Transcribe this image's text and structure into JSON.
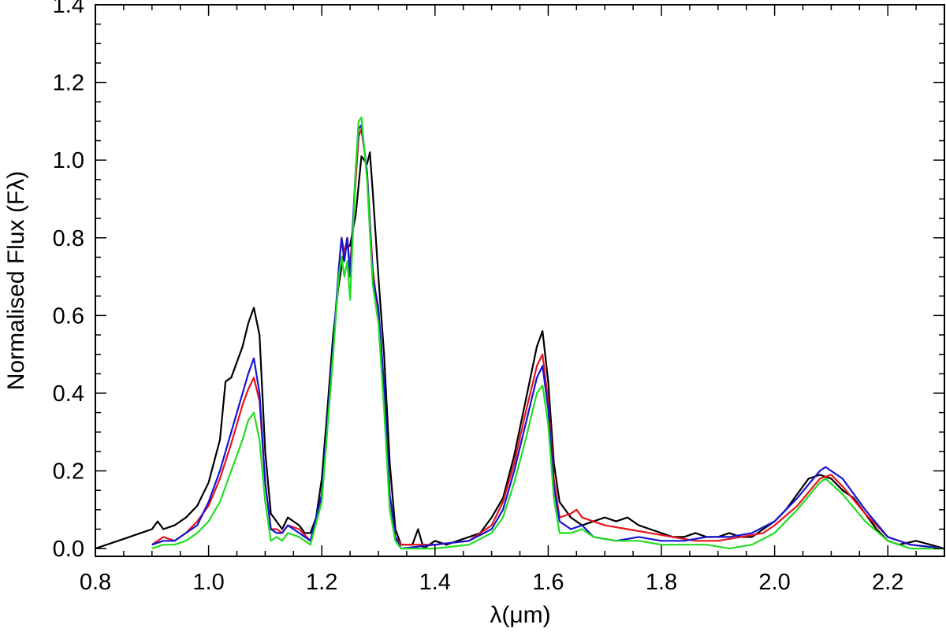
{
  "chart_data": {
    "type": "line",
    "title": "",
    "xlabel": "λ(μm)",
    "ylabel": "Normalised Flux (Fλ)",
    "xlim": [
      0.8,
      2.3
    ],
    "ylim": [
      -0.02,
      1.4
    ],
    "grid": false,
    "x_ticks": [
      "0.8",
      "1.0",
      "1.2",
      "1.4",
      "1.6",
      "1.8",
      "2.0",
      "2.2"
    ],
    "y_ticks": [
      "0.0",
      "0.2",
      "0.4",
      "0.6",
      "0.8",
      "1.0",
      "1.2",
      "1.4"
    ],
    "series": [
      {
        "color": "#000000",
        "points": [
          [
            0.8,
            0.0
          ],
          [
            0.82,
            0.01
          ],
          [
            0.84,
            0.02
          ],
          [
            0.86,
            0.03
          ],
          [
            0.88,
            0.04
          ],
          [
            0.9,
            0.05
          ],
          [
            0.91,
            0.07
          ],
          [
            0.92,
            0.05
          ],
          [
            0.94,
            0.06
          ],
          [
            0.96,
            0.08
          ],
          [
            0.98,
            0.11
          ],
          [
            1.0,
            0.17
          ],
          [
            1.02,
            0.28
          ],
          [
            1.03,
            0.43
          ],
          [
            1.04,
            0.44
          ],
          [
            1.05,
            0.48
          ],
          [
            1.06,
            0.52
          ],
          [
            1.07,
            0.58
          ],
          [
            1.08,
            0.62
          ],
          [
            1.09,
            0.55
          ],
          [
            1.1,
            0.25
          ],
          [
            1.11,
            0.09
          ],
          [
            1.12,
            0.07
          ],
          [
            1.13,
            0.05
          ],
          [
            1.14,
            0.08
          ],
          [
            1.15,
            0.07
          ],
          [
            1.16,
            0.06
          ],
          [
            1.17,
            0.04
          ],
          [
            1.18,
            0.04
          ],
          [
            1.19,
            0.08
          ],
          [
            1.2,
            0.18
          ],
          [
            1.21,
            0.36
          ],
          [
            1.22,
            0.55
          ],
          [
            1.23,
            0.68
          ],
          [
            1.24,
            0.77
          ],
          [
            1.25,
            0.78
          ],
          [
            1.26,
            0.86
          ],
          [
            1.27,
            1.01
          ],
          [
            1.28,
            0.99
          ],
          [
            1.285,
            1.02
          ],
          [
            1.29,
            0.92
          ],
          [
            1.3,
            0.7
          ],
          [
            1.31,
            0.5
          ],
          [
            1.32,
            0.22
          ],
          [
            1.33,
            0.05
          ],
          [
            1.34,
            0.01
          ],
          [
            1.36,
            0.01
          ],
          [
            1.37,
            0.05
          ],
          [
            1.38,
            0.0
          ],
          [
            1.4,
            0.02
          ],
          [
            1.42,
            0.01
          ],
          [
            1.44,
            0.02
          ],
          [
            1.46,
            0.03
          ],
          [
            1.48,
            0.04
          ],
          [
            1.5,
            0.08
          ],
          [
            1.52,
            0.13
          ],
          [
            1.54,
            0.24
          ],
          [
            1.56,
            0.38
          ],
          [
            1.58,
            0.52
          ],
          [
            1.59,
            0.56
          ],
          [
            1.6,
            0.43
          ],
          [
            1.61,
            0.22
          ],
          [
            1.62,
            0.12
          ],
          [
            1.64,
            0.08
          ],
          [
            1.66,
            0.06
          ],
          [
            1.68,
            0.07
          ],
          [
            1.7,
            0.08
          ],
          [
            1.72,
            0.07
          ],
          [
            1.74,
            0.08
          ],
          [
            1.76,
            0.06
          ],
          [
            1.78,
            0.05
          ],
          [
            1.8,
            0.04
          ],
          [
            1.82,
            0.03
          ],
          [
            1.84,
            0.03
          ],
          [
            1.86,
            0.04
          ],
          [
            1.88,
            0.03
          ],
          [
            1.9,
            0.03
          ],
          [
            1.92,
            0.04
          ],
          [
            1.94,
            0.03
          ],
          [
            1.96,
            0.03
          ],
          [
            1.98,
            0.05
          ],
          [
            2.0,
            0.07
          ],
          [
            2.02,
            0.1
          ],
          [
            2.04,
            0.14
          ],
          [
            2.06,
            0.18
          ],
          [
            2.08,
            0.19
          ],
          [
            2.1,
            0.18
          ],
          [
            2.12,
            0.15
          ],
          [
            2.14,
            0.13
          ],
          [
            2.16,
            0.09
          ],
          [
            2.18,
            0.05
          ],
          [
            2.2,
            0.02
          ],
          [
            2.22,
            0.01
          ],
          [
            2.25,
            0.02
          ],
          [
            2.3,
            0.0
          ]
        ]
      },
      {
        "color": "#e8141c",
        "points": [
          [
            0.9,
            0.01
          ],
          [
            0.92,
            0.03
          ],
          [
            0.94,
            0.02
          ],
          [
            0.96,
            0.04
          ],
          [
            0.98,
            0.07
          ],
          [
            1.0,
            0.11
          ],
          [
            1.02,
            0.18
          ],
          [
            1.04,
            0.27
          ],
          [
            1.06,
            0.37
          ],
          [
            1.07,
            0.41
          ],
          [
            1.08,
            0.44
          ],
          [
            1.09,
            0.38
          ],
          [
            1.1,
            0.17
          ],
          [
            1.11,
            0.05
          ],
          [
            1.12,
            0.05
          ],
          [
            1.13,
            0.04
          ],
          [
            1.14,
            0.06
          ],
          [
            1.16,
            0.05
          ],
          [
            1.18,
            0.02
          ],
          [
            1.2,
            0.13
          ],
          [
            1.22,
            0.5
          ],
          [
            1.23,
            0.72
          ],
          [
            1.235,
            0.8
          ],
          [
            1.24,
            0.76
          ],
          [
            1.245,
            0.8
          ],
          [
            1.25,
            0.72
          ],
          [
            1.26,
            0.95
          ],
          [
            1.265,
            1.06
          ],
          [
            1.27,
            1.08
          ],
          [
            1.28,
            0.97
          ],
          [
            1.29,
            0.72
          ],
          [
            1.3,
            0.6
          ],
          [
            1.31,
            0.4
          ],
          [
            1.32,
            0.14
          ],
          [
            1.33,
            0.03
          ],
          [
            1.34,
            0.01
          ],
          [
            1.4,
            0.01
          ],
          [
            1.46,
            0.02
          ],
          [
            1.5,
            0.06
          ],
          [
            1.52,
            0.12
          ],
          [
            1.54,
            0.22
          ],
          [
            1.56,
            0.35
          ],
          [
            1.58,
            0.47
          ],
          [
            1.59,
            0.5
          ],
          [
            1.6,
            0.38
          ],
          [
            1.61,
            0.18
          ],
          [
            1.62,
            0.08
          ],
          [
            1.64,
            0.09
          ],
          [
            1.65,
            0.1
          ],
          [
            1.66,
            0.08
          ],
          [
            1.7,
            0.06
          ],
          [
            1.74,
            0.05
          ],
          [
            1.78,
            0.04
          ],
          [
            1.82,
            0.03
          ],
          [
            1.86,
            0.02
          ],
          [
            1.9,
            0.02
          ],
          [
            1.94,
            0.03
          ],
          [
            1.98,
            0.04
          ],
          [
            2.0,
            0.06
          ],
          [
            2.04,
            0.11
          ],
          [
            2.08,
            0.18
          ],
          [
            2.1,
            0.19
          ],
          [
            2.12,
            0.16
          ],
          [
            2.16,
            0.09
          ],
          [
            2.2,
            0.03
          ],
          [
            2.24,
            0.01
          ],
          [
            2.3,
            0.0
          ]
        ]
      },
      {
        "color": "#1414d4",
        "points": [
          [
            0.9,
            0.01
          ],
          [
            0.92,
            0.02
          ],
          [
            0.94,
            0.02
          ],
          [
            0.96,
            0.04
          ],
          [
            0.98,
            0.06
          ],
          [
            1.0,
            0.12
          ],
          [
            1.02,
            0.2
          ],
          [
            1.04,
            0.3
          ],
          [
            1.06,
            0.4
          ],
          [
            1.07,
            0.45
          ],
          [
            1.08,
            0.49
          ],
          [
            1.09,
            0.4
          ],
          [
            1.1,
            0.17
          ],
          [
            1.11,
            0.05
          ],
          [
            1.12,
            0.04
          ],
          [
            1.13,
            0.04
          ],
          [
            1.14,
            0.06
          ],
          [
            1.16,
            0.04
          ],
          [
            1.18,
            0.02
          ],
          [
            1.2,
            0.14
          ],
          [
            1.22,
            0.52
          ],
          [
            1.23,
            0.72
          ],
          [
            1.235,
            0.8
          ],
          [
            1.24,
            0.74
          ],
          [
            1.245,
            0.8
          ],
          [
            1.25,
            0.7
          ],
          [
            1.26,
            0.98
          ],
          [
            1.265,
            1.08
          ],
          [
            1.27,
            1.09
          ],
          [
            1.28,
            0.97
          ],
          [
            1.29,
            0.7
          ],
          [
            1.3,
            0.62
          ],
          [
            1.31,
            0.42
          ],
          [
            1.32,
            0.14
          ],
          [
            1.33,
            0.03
          ],
          [
            1.34,
            0.0
          ],
          [
            1.4,
            0.01
          ],
          [
            1.46,
            0.02
          ],
          [
            1.5,
            0.05
          ],
          [
            1.52,
            0.1
          ],
          [
            1.54,
            0.2
          ],
          [
            1.56,
            0.32
          ],
          [
            1.58,
            0.44
          ],
          [
            1.59,
            0.47
          ],
          [
            1.6,
            0.36
          ],
          [
            1.61,
            0.16
          ],
          [
            1.62,
            0.07
          ],
          [
            1.64,
            0.05
          ],
          [
            1.66,
            0.06
          ],
          [
            1.68,
            0.03
          ],
          [
            1.72,
            0.02
          ],
          [
            1.76,
            0.03
          ],
          [
            1.8,
            0.02
          ],
          [
            1.84,
            0.02
          ],
          [
            1.88,
            0.03
          ],
          [
            1.92,
            0.03
          ],
          [
            1.96,
            0.04
          ],
          [
            2.0,
            0.07
          ],
          [
            2.04,
            0.13
          ],
          [
            2.08,
            0.2
          ],
          [
            2.09,
            0.21
          ],
          [
            2.12,
            0.18
          ],
          [
            2.16,
            0.1
          ],
          [
            2.2,
            0.03
          ],
          [
            2.24,
            0.01
          ],
          [
            2.3,
            0.0
          ]
        ]
      },
      {
        "color": "#22dd22",
        "points": [
          [
            0.9,
            0.0
          ],
          [
            0.92,
            0.01
          ],
          [
            0.94,
            0.01
          ],
          [
            0.96,
            0.02
          ],
          [
            0.98,
            0.04
          ],
          [
            1.0,
            0.07
          ],
          [
            1.02,
            0.12
          ],
          [
            1.04,
            0.2
          ],
          [
            1.06,
            0.28
          ],
          [
            1.07,
            0.33
          ],
          [
            1.08,
            0.35
          ],
          [
            1.09,
            0.28
          ],
          [
            1.1,
            0.12
          ],
          [
            1.11,
            0.02
          ],
          [
            1.12,
            0.03
          ],
          [
            1.13,
            0.02
          ],
          [
            1.14,
            0.04
          ],
          [
            1.16,
            0.03
          ],
          [
            1.18,
            0.01
          ],
          [
            1.2,
            0.12
          ],
          [
            1.22,
            0.5
          ],
          [
            1.23,
            0.7
          ],
          [
            1.235,
            0.75
          ],
          [
            1.24,
            0.7
          ],
          [
            1.245,
            0.74
          ],
          [
            1.25,
            0.64
          ],
          [
            1.26,
            0.98
          ],
          [
            1.265,
            1.1
          ],
          [
            1.27,
            1.11
          ],
          [
            1.28,
            0.95
          ],
          [
            1.29,
            0.68
          ],
          [
            1.3,
            0.58
          ],
          [
            1.31,
            0.36
          ],
          [
            1.32,
            0.1
          ],
          [
            1.33,
            0.02
          ],
          [
            1.34,
            0.0
          ],
          [
            1.4,
            0.0
          ],
          [
            1.46,
            0.01
          ],
          [
            1.5,
            0.04
          ],
          [
            1.52,
            0.08
          ],
          [
            1.54,
            0.17
          ],
          [
            1.56,
            0.28
          ],
          [
            1.58,
            0.4
          ],
          [
            1.59,
            0.42
          ],
          [
            1.6,
            0.32
          ],
          [
            1.61,
            0.13
          ],
          [
            1.62,
            0.04
          ],
          [
            1.64,
            0.04
          ],
          [
            1.66,
            0.05
          ],
          [
            1.68,
            0.03
          ],
          [
            1.72,
            0.02
          ],
          [
            1.76,
            0.02
          ],
          [
            1.8,
            0.01
          ],
          [
            1.84,
            0.01
          ],
          [
            1.88,
            0.01
          ],
          [
            1.92,
            0.0
          ],
          [
            1.96,
            0.01
          ],
          [
            2.0,
            0.04
          ],
          [
            2.04,
            0.1
          ],
          [
            2.08,
            0.17
          ],
          [
            2.09,
            0.18
          ],
          [
            2.12,
            0.14
          ],
          [
            2.16,
            0.07
          ],
          [
            2.2,
            0.02
          ],
          [
            2.24,
            0.0
          ],
          [
            2.3,
            0.0
          ]
        ]
      }
    ]
  }
}
